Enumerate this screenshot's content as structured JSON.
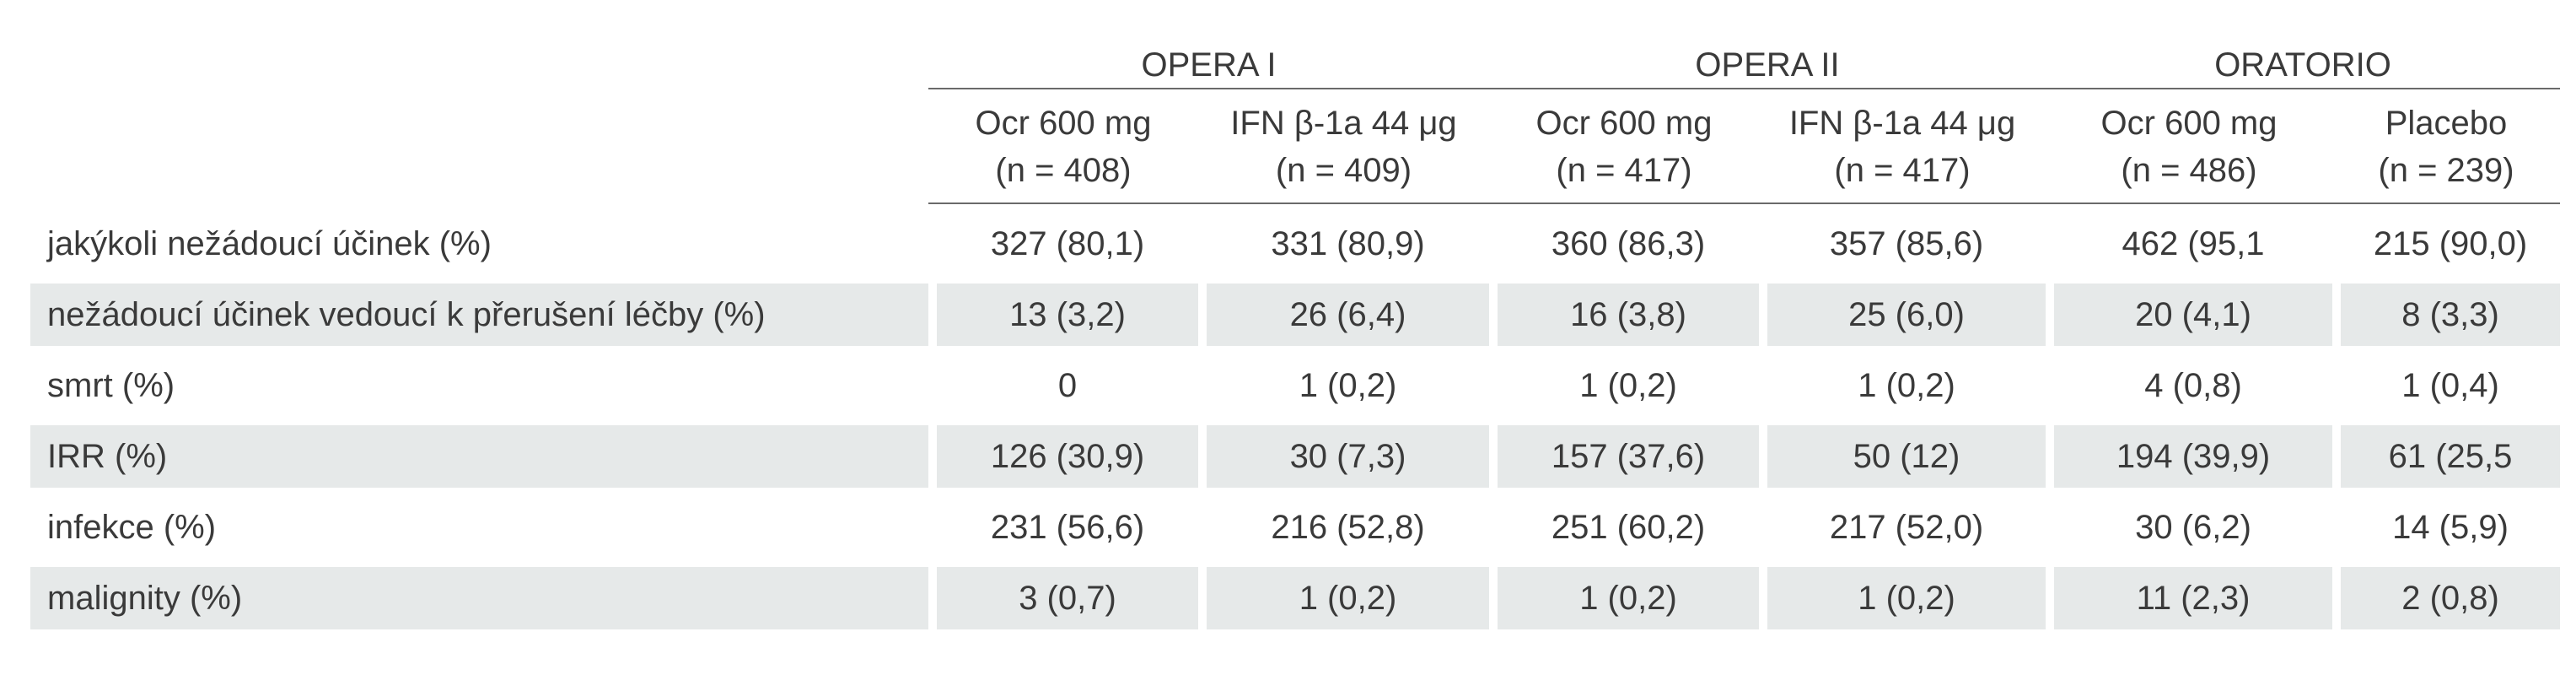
{
  "table": {
    "groups": [
      {
        "label": "OPERA I"
      },
      {
        "label": "OPERA II"
      },
      {
        "label": "ORATORIO"
      }
    ],
    "columns": [
      {
        "name": "Ocr 600 mg",
        "n": "(n = 408)"
      },
      {
        "name": "IFN β-1a 44 μg",
        "n": "(n = 409)"
      },
      {
        "name": "Ocr 600 mg",
        "n": "(n = 417)"
      },
      {
        "name": "IFN β-1a 44 μg",
        "n": "(n = 417)"
      },
      {
        "name": "Ocr 600 mg",
        "n": "(n = 486)"
      },
      {
        "name": "Placebo",
        "n": "(n = 239)"
      }
    ],
    "rows": [
      {
        "label": "jakýkoli nežádoucí účinek (%)",
        "cells": [
          "327 (80,1)",
          "331 (80,9)",
          "360 (86,3)",
          "357  (85,6)",
          "462 (95,1",
          "215 (90,0)"
        ]
      },
      {
        "label": "nežádoucí účinek vedoucí k přerušení léčby (%)",
        "cells": [
          "13 (3,2)",
          "26 (6,4)",
          "16 (3,8)",
          "25 (6,0)",
          "20 (4,1)",
          "8 (3,3)"
        ]
      },
      {
        "label": "smrt (%)",
        "cells": [
          "0",
          "1 (0,2)",
          "1 (0,2)",
          "1 (0,2)",
          "4 (0,8)",
          "1 (0,4)"
        ]
      },
      {
        "label": "IRR (%)",
        "cells": [
          "126 (30,9)",
          "30 (7,3)",
          "157 (37,6)",
          "50 (12)",
          "194 (39,9)",
          "61 (25,5"
        ]
      },
      {
        "label": "infekce (%)",
        "cells": [
          "231 (56,6)",
          "216 (52,8)",
          "251 (60,2)",
          "217 (52,0)",
          "30 (6,2)",
          "14 (5,9)"
        ]
      },
      {
        "label": "malignity (%)",
        "cells": [
          "3 (0,7)",
          "1 (0,2)",
          "1 (0,2)",
          "1 (0,2)",
          "11 (2,3)",
          "2 (0,8)"
        ]
      }
    ]
  }
}
